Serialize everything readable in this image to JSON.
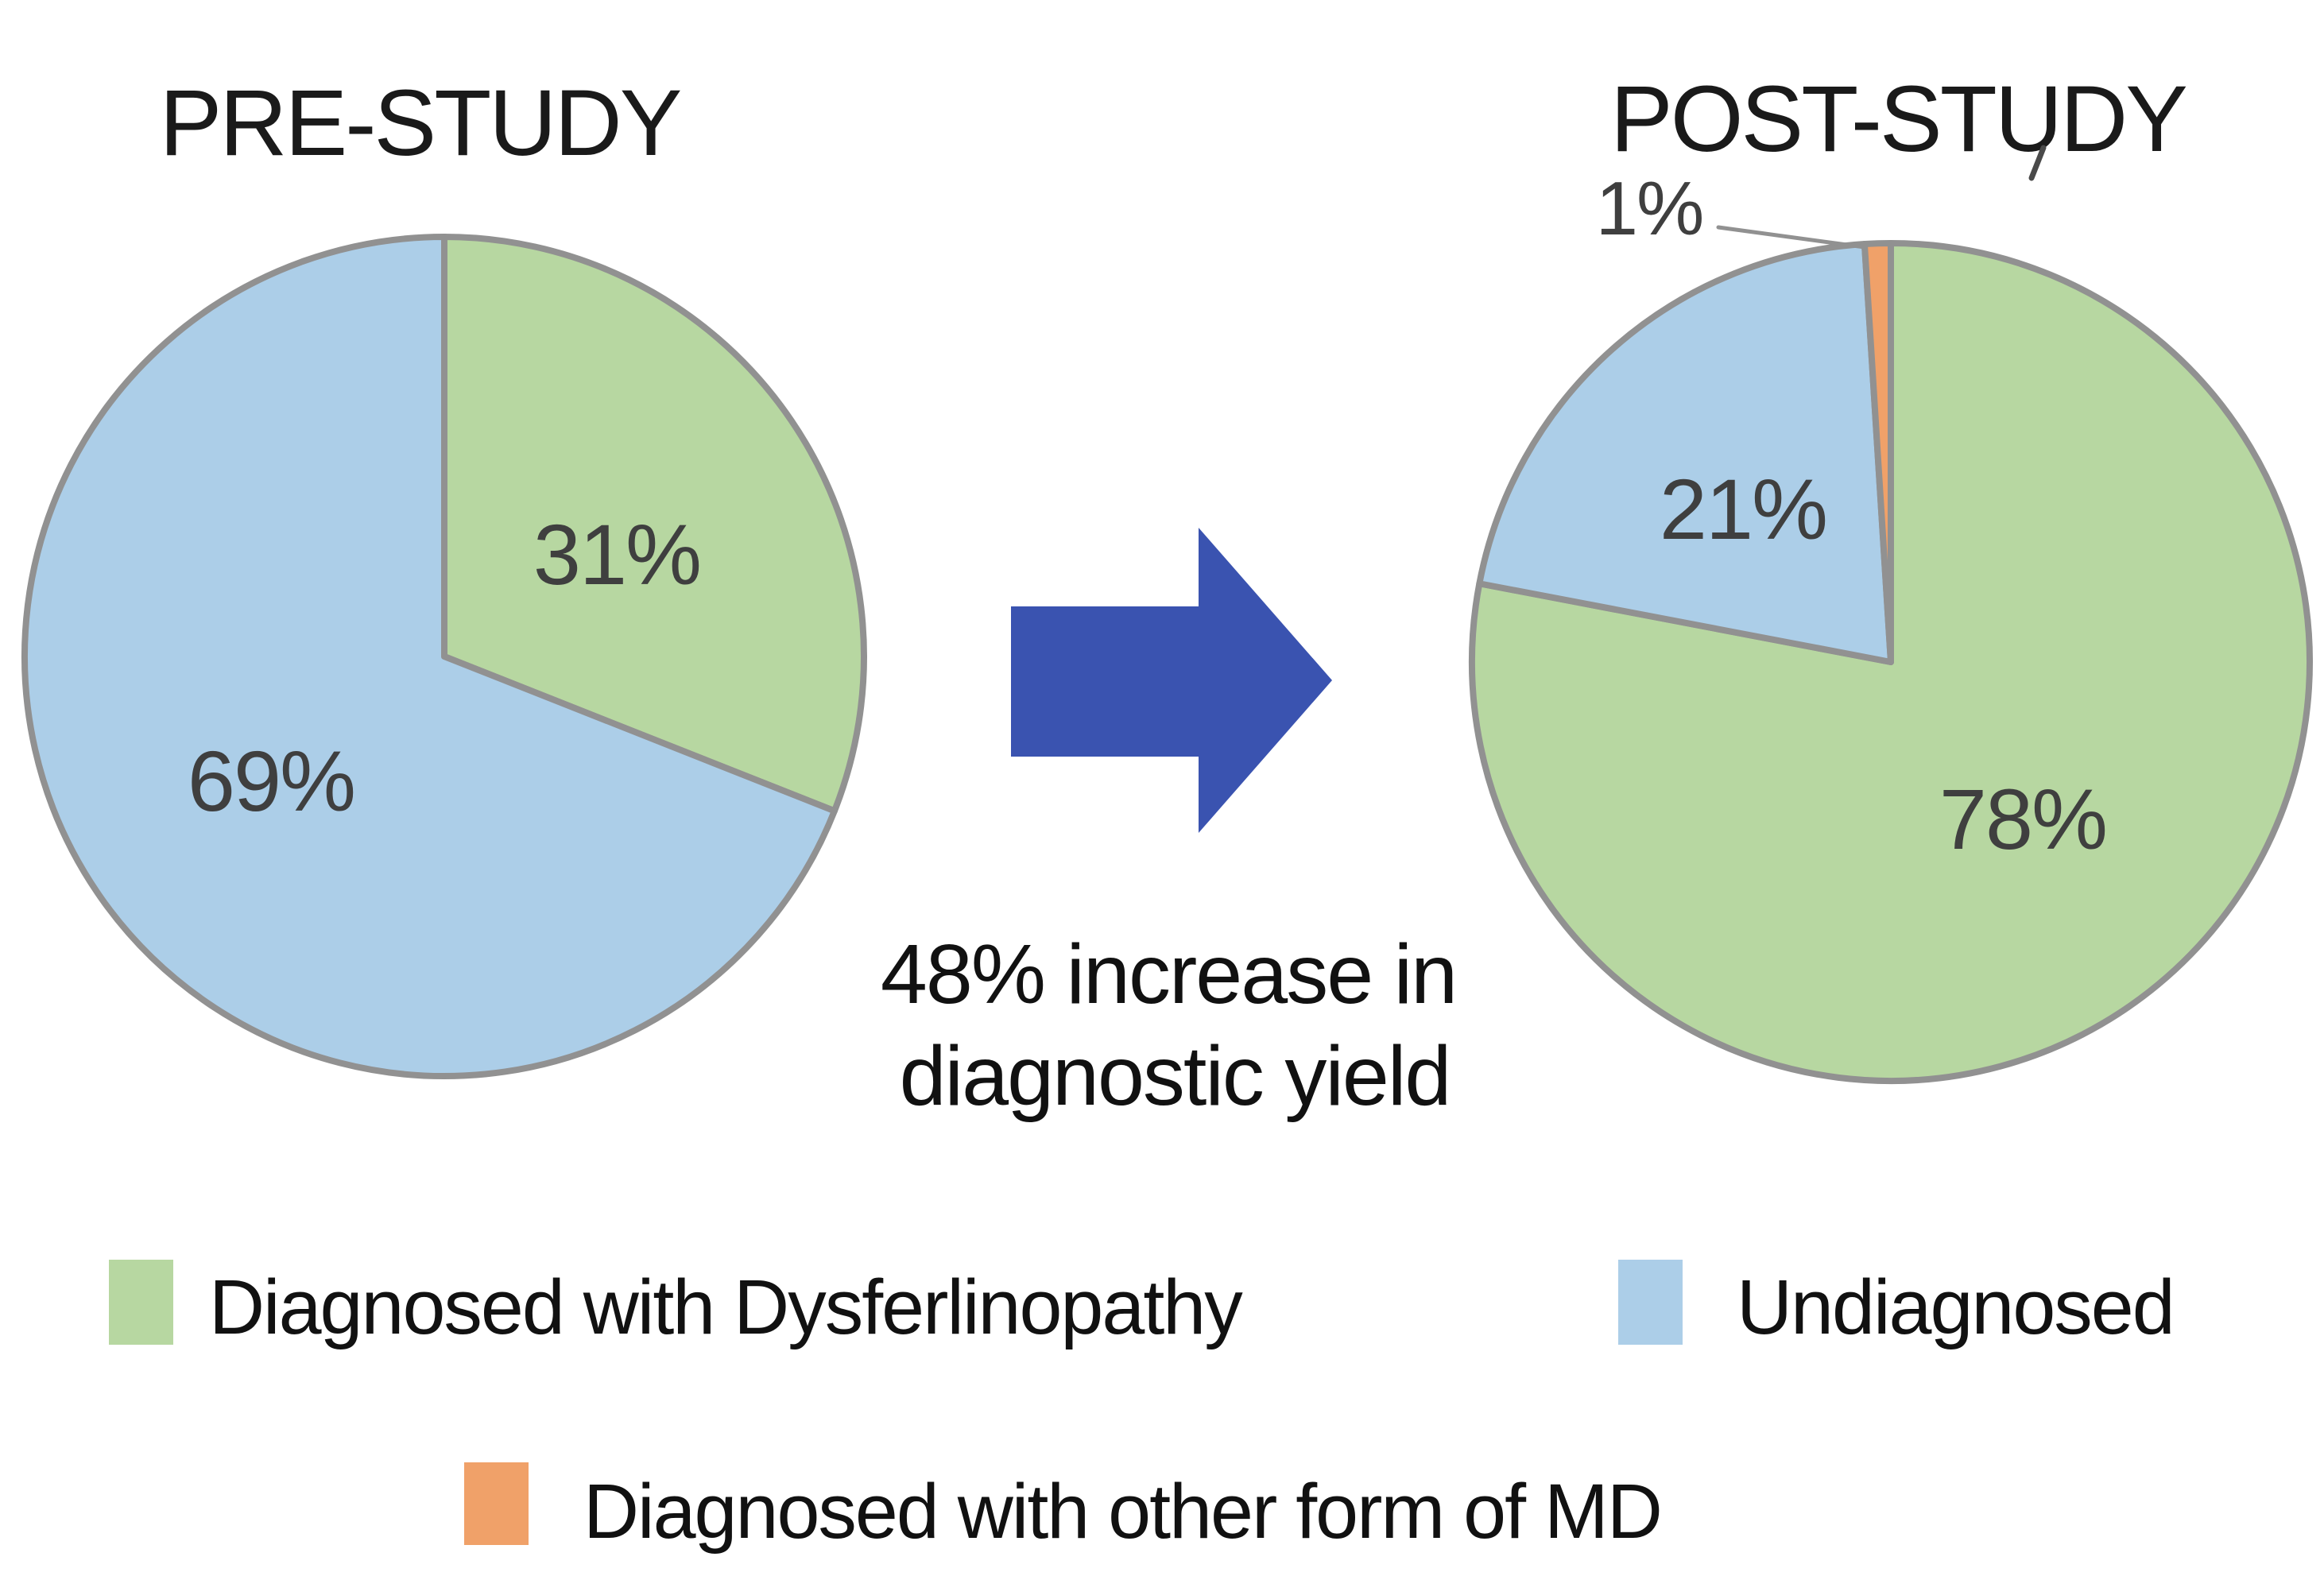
{
  "colors": {
    "green": "#b7d7a1",
    "blue": "#accee8",
    "orange": "#f0a169",
    "outline_gray": "#919191",
    "arrow_fill": "#3a53b0",
    "arrow_border": "#2e4190",
    "label_gray": "#3f3f3f",
    "text_black": "#1a1a1a"
  },
  "chart_data": {
    "type": "pie",
    "legend_position": "bottom",
    "pies": [
      {
        "title": "PRE-STUDY",
        "slices": [
          {
            "label": "Diagnosed with Dysferlinopathy",
            "value": 31,
            "display": "31%",
            "color": "green"
          },
          {
            "label": "Undiagnosed",
            "value": 69,
            "display": "69%",
            "color": "blue"
          }
        ]
      },
      {
        "title": "POST-STUDY",
        "slices": [
          {
            "label": "Diagnosed with Dysferlinopathy",
            "value": 78,
            "display": "78%",
            "color": "green"
          },
          {
            "label": "Undiagnosed",
            "value": 21,
            "display": "21%",
            "color": "blue"
          },
          {
            "label": "Diagnosed with other form of MD",
            "value": 1,
            "display": "1%",
            "color": "orange"
          }
        ]
      }
    ],
    "annotation": "48% increase in diagnostic yield"
  },
  "annotation": {
    "line1": "48% increase in",
    "line2": "diagnostic yield"
  },
  "legend": {
    "items": [
      {
        "label": "Diagnosed with Dysferlinopathy",
        "color": "green"
      },
      {
        "label": "Undiagnosed",
        "color": "blue"
      },
      {
        "label": "Diagnosed with other form of MD",
        "color": "orange"
      }
    ]
  }
}
